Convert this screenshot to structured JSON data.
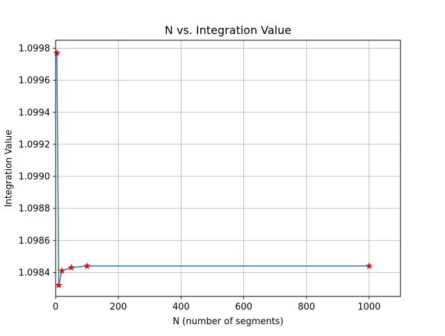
{
  "chart_data": {
    "type": "line",
    "title": "N vs. Integration Value",
    "xlabel": "N (number of segments)",
    "ylabel": "Integration Value",
    "xlim": [
      0,
      1100
    ],
    "ylim": [
      1.09825,
      1.09985
    ],
    "grid": true,
    "xticks": [
      0,
      200,
      400,
      600,
      800,
      1000
    ],
    "xtick_labels": [
      "0",
      "200",
      "400",
      "600",
      "800",
      "1000"
    ],
    "yticks": [
      1.0984,
      1.0986,
      1.0988,
      1.099,
      1.0992,
      1.0994,
      1.0996,
      1.0998
    ],
    "ytick_labels": [
      "1.0984",
      "1.0986",
      "1.0988",
      "1.0990",
      "1.0992",
      "1.0994",
      "1.0996",
      "1.0998"
    ],
    "series": [
      {
        "x": [
          4,
          10,
          20,
          50,
          100,
          1000
        ],
        "y": [
          1.09977,
          1.09832,
          1.09841,
          1.09843,
          1.09844,
          1.09844
        ],
        "line_color": "#1f77b4",
        "marker": "star",
        "marker_color": "#ff0000"
      }
    ]
  }
}
